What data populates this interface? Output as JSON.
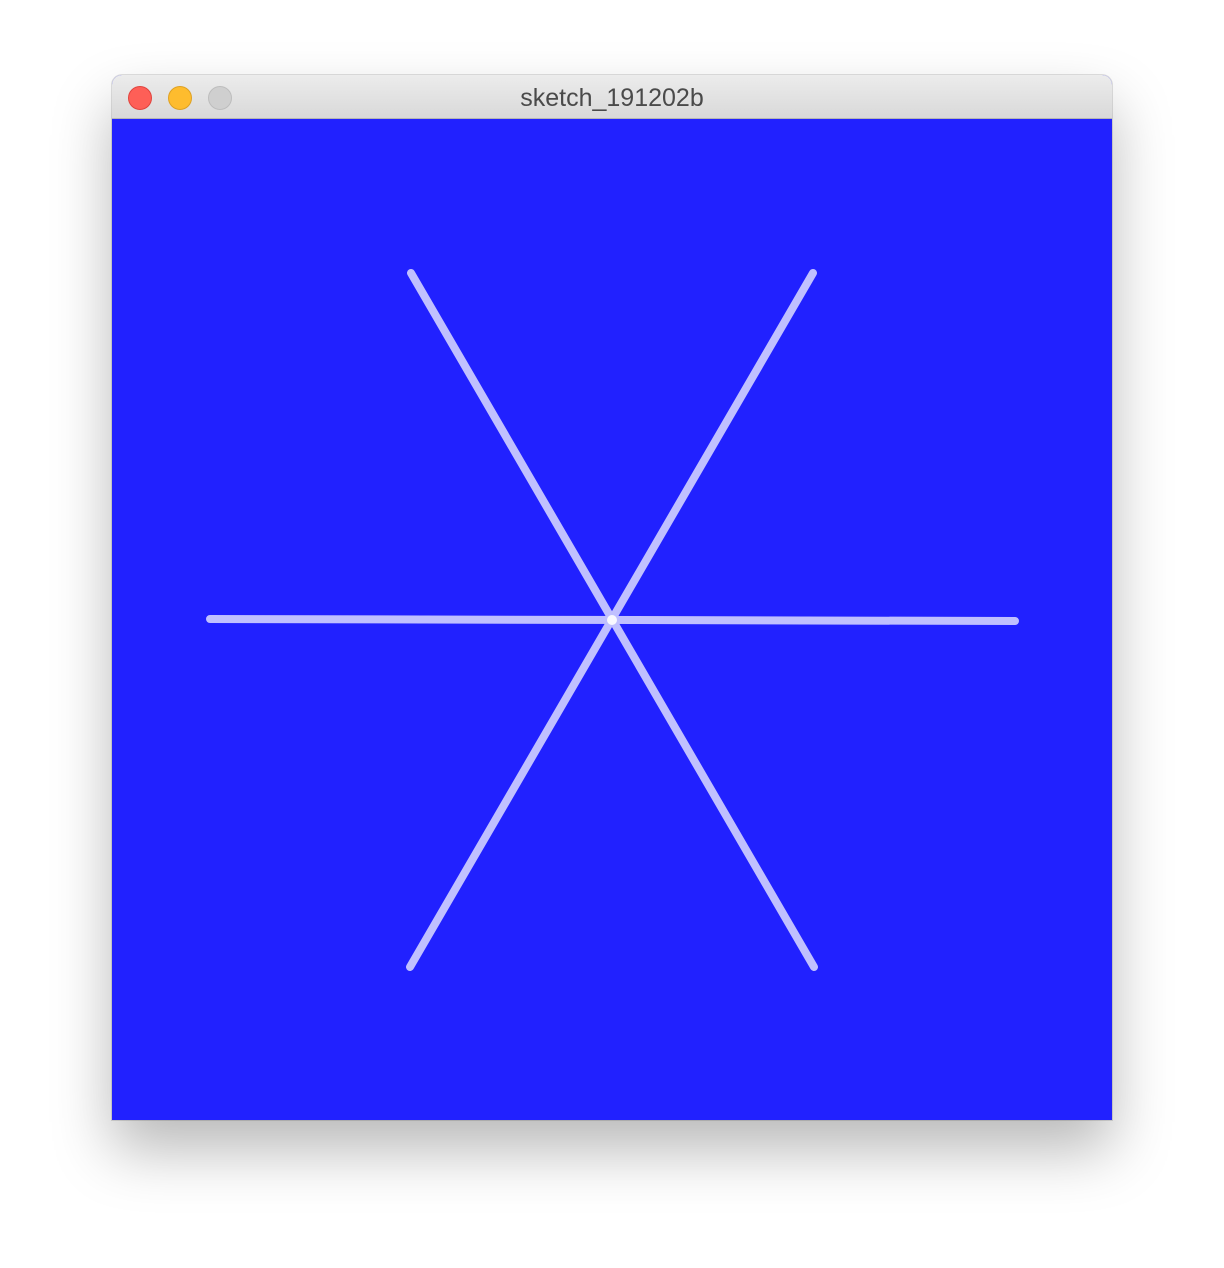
{
  "window": {
    "title": "sketch_191202b",
    "background_color": "#2121ff"
  },
  "sketch": {
    "stroke_color": "#c0c0ff",
    "center_glow_color": "#ffffff",
    "spoke_count": 6
  }
}
